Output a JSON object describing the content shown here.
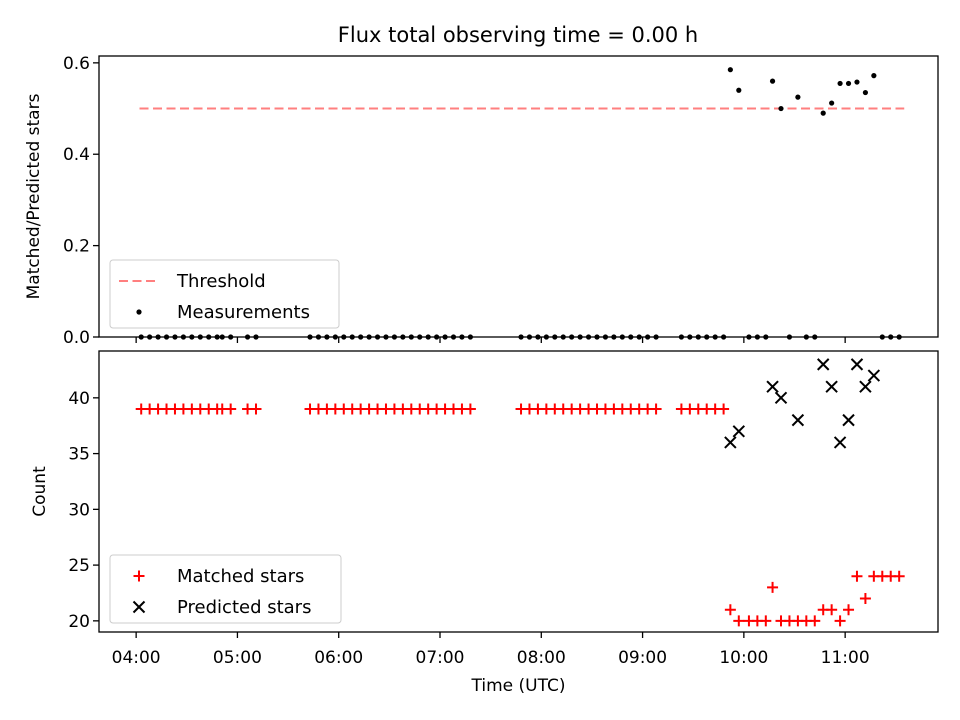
{
  "chart_data": [
    {
      "type": "scatter",
      "title": "Flux total observing time = 0.00 h",
      "xlabel": "",
      "ylabel": "Matched/Predicted stars",
      "xlim": [
        "03:38",
        "11:55"
      ],
      "ylim": [
        0,
        0.615
      ],
      "yticks": [
        "0.0",
        "0.2",
        "0.4",
        "0.6"
      ],
      "legend": {
        "position": "lower-left",
        "entries": [
          "Threshold",
          "Measurements"
        ]
      },
      "threshold": {
        "name": "Threshold",
        "y": 0.5,
        "x_start": "04:02",
        "x_end": "11:35",
        "color": "#ff7f7f",
        "style": "dashed"
      },
      "series": [
        {
          "name": "Measurements",
          "color": "#000000",
          "marker": "dot",
          "points": [
            [
              "04:03",
              0
            ],
            [
              "04:08",
              0
            ],
            [
              "04:13",
              0
            ],
            [
              "04:18",
              0
            ],
            [
              "04:23",
              0
            ],
            [
              "04:28",
              0
            ],
            [
              "04:33",
              0
            ],
            [
              "04:38",
              0
            ],
            [
              "04:43",
              0
            ],
            [
              "04:48",
              0
            ],
            [
              "04:51",
              0
            ],
            [
              "04:56",
              0
            ],
            [
              "05:06",
              0
            ],
            [
              "05:11",
              0
            ],
            [
              "05:43",
              0
            ],
            [
              "05:48",
              0
            ],
            [
              "05:53",
              0
            ],
            [
              "05:58",
              0
            ],
            [
              "06:03",
              0
            ],
            [
              "06:08",
              0
            ],
            [
              "06:13",
              0
            ],
            [
              "06:18",
              0
            ],
            [
              "06:23",
              0
            ],
            [
              "06:28",
              0
            ],
            [
              "06:33",
              0
            ],
            [
              "06:38",
              0
            ],
            [
              "06:43",
              0
            ],
            [
              "06:48",
              0
            ],
            [
              "06:53",
              0
            ],
            [
              "06:58",
              0
            ],
            [
              "07:03",
              0
            ],
            [
              "07:08",
              0
            ],
            [
              "07:13",
              0
            ],
            [
              "07:18",
              0
            ],
            [
              "07:48",
              0
            ],
            [
              "07:53",
              0
            ],
            [
              "07:58",
              0
            ],
            [
              "08:03",
              0
            ],
            [
              "08:08",
              0
            ],
            [
              "08:13",
              0
            ],
            [
              "08:18",
              0
            ],
            [
              "08:23",
              0
            ],
            [
              "08:28",
              0
            ],
            [
              "08:33",
              0
            ],
            [
              "08:38",
              0
            ],
            [
              "08:43",
              0
            ],
            [
              "08:48",
              0
            ],
            [
              "08:53",
              0
            ],
            [
              "08:58",
              0
            ],
            [
              "09:03",
              0
            ],
            [
              "09:08",
              0
            ],
            [
              "09:23",
              0
            ],
            [
              "09:28",
              0
            ],
            [
              "09:33",
              0
            ],
            [
              "09:38",
              0
            ],
            [
              "09:43",
              0
            ],
            [
              "09:48",
              0
            ],
            [
              "09:52",
              0.585
            ],
            [
              "09:57",
              0.54
            ],
            [
              "10:03",
              0
            ],
            [
              "10:08",
              0
            ],
            [
              "10:13",
              0
            ],
            [
              "10:17",
              0.56
            ],
            [
              "10:22",
              0.5
            ],
            [
              "10:27",
              0
            ],
            [
              "10:32",
              0.525
            ],
            [
              "10:37",
              0
            ],
            [
              "10:42",
              0
            ],
            [
              "10:47",
              0.49
            ],
            [
              "10:52",
              0.512
            ],
            [
              "10:57",
              0.555
            ],
            [
              "11:02",
              0.555
            ],
            [
              "11:07",
              0.558
            ],
            [
              "11:12",
              0.535
            ],
            [
              "11:17",
              0.572
            ],
            [
              "11:22",
              0
            ],
            [
              "11:27",
              0
            ],
            [
              "11:32",
              0
            ]
          ]
        }
      ]
    },
    {
      "type": "scatter",
      "title": "",
      "xlabel": "Time (UTC)",
      "ylabel": "Count",
      "xlim": [
        "03:38",
        "11:55"
      ],
      "ylim": [
        19.0,
        44.2
      ],
      "xticks": [
        "04:00",
        "05:00",
        "06:00",
        "07:00",
        "08:00",
        "09:00",
        "10:00",
        "11:00"
      ],
      "yticks": [
        "20",
        "25",
        "30",
        "35",
        "40"
      ],
      "legend": {
        "position": "lower-left",
        "entries": [
          "Matched stars",
          "Predicted stars"
        ]
      },
      "series": [
        {
          "name": "Matched stars",
          "color": "#ff0000",
          "marker": "plus",
          "points": [
            [
              "04:03",
              39
            ],
            [
              "04:08",
              39
            ],
            [
              "04:13",
              39
            ],
            [
              "04:18",
              39
            ],
            [
              "04:23",
              39
            ],
            [
              "04:28",
              39
            ],
            [
              "04:33",
              39
            ],
            [
              "04:38",
              39
            ],
            [
              "04:43",
              39
            ],
            [
              "04:48",
              39
            ],
            [
              "04:51",
              39
            ],
            [
              "04:56",
              39
            ],
            [
              "05:06",
              39
            ],
            [
              "05:11",
              39
            ],
            [
              "05:43",
              39
            ],
            [
              "05:48",
              39
            ],
            [
              "05:53",
              39
            ],
            [
              "05:58",
              39
            ],
            [
              "06:03",
              39
            ],
            [
              "06:08",
              39
            ],
            [
              "06:13",
              39
            ],
            [
              "06:18",
              39
            ],
            [
              "06:23",
              39
            ],
            [
              "06:28",
              39
            ],
            [
              "06:33",
              39
            ],
            [
              "06:38",
              39
            ],
            [
              "06:43",
              39
            ],
            [
              "06:48",
              39
            ],
            [
              "06:53",
              39
            ],
            [
              "06:58",
              39
            ],
            [
              "07:03",
              39
            ],
            [
              "07:08",
              39
            ],
            [
              "07:13",
              39
            ],
            [
              "07:18",
              39
            ],
            [
              "07:48",
              39
            ],
            [
              "07:53",
              39
            ],
            [
              "07:58",
              39
            ],
            [
              "08:03",
              39
            ],
            [
              "08:08",
              39
            ],
            [
              "08:13",
              39
            ],
            [
              "08:18",
              39
            ],
            [
              "08:23",
              39
            ],
            [
              "08:28",
              39
            ],
            [
              "08:33",
              39
            ],
            [
              "08:38",
              39
            ],
            [
              "08:43",
              39
            ],
            [
              "08:48",
              39
            ],
            [
              "08:53",
              39
            ],
            [
              "08:58",
              39
            ],
            [
              "09:03",
              39
            ],
            [
              "09:08",
              39
            ],
            [
              "09:23",
              39
            ],
            [
              "09:28",
              39
            ],
            [
              "09:33",
              39
            ],
            [
              "09:38",
              39
            ],
            [
              "09:43",
              39
            ],
            [
              "09:48",
              39
            ],
            [
              "09:52",
              21
            ],
            [
              "09:57",
              20
            ],
            [
              "10:03",
              20
            ],
            [
              "10:08",
              20
            ],
            [
              "10:13",
              20
            ],
            [
              "10:17",
              23
            ],
            [
              "10:22",
              20
            ],
            [
              "10:27",
              20
            ],
            [
              "10:32",
              20
            ],
            [
              "10:37",
              20
            ],
            [
              "10:42",
              20
            ],
            [
              "10:47",
              21
            ],
            [
              "10:52",
              21
            ],
            [
              "10:57",
              20
            ],
            [
              "11:02",
              21
            ],
            [
              "11:07",
              24
            ],
            [
              "11:12",
              22
            ],
            [
              "11:17",
              24
            ],
            [
              "11:22",
              24
            ],
            [
              "11:27",
              24
            ],
            [
              "11:32",
              24
            ]
          ]
        },
        {
          "name": "Predicted stars",
          "color": "#000000",
          "marker": "x",
          "points": [
            [
              "09:52",
              36
            ],
            [
              "09:57",
              37
            ],
            [
              "10:17",
              41
            ],
            [
              "10:22",
              40
            ],
            [
              "10:32",
              38
            ],
            [
              "10:47",
              43
            ],
            [
              "10:52",
              41
            ],
            [
              "10:57",
              36
            ],
            [
              "11:02",
              38
            ],
            [
              "11:07",
              43
            ],
            [
              "11:12",
              41
            ],
            [
              "11:17",
              42
            ]
          ]
        }
      ]
    }
  ]
}
